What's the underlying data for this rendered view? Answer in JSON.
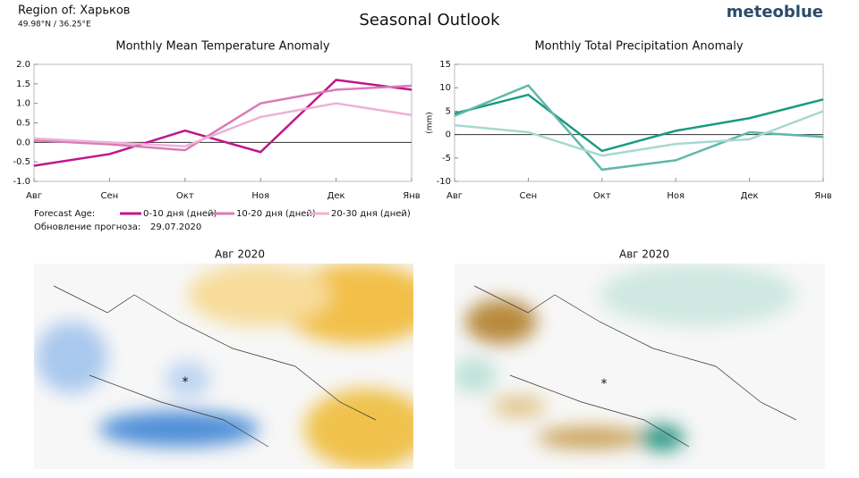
{
  "header": {
    "region": "Region of: Харьков",
    "coords": "49.98°N / 36.25°E",
    "title": "Seasonal Outlook",
    "brand": "meteoblue"
  },
  "chart_data": [
    {
      "type": "line",
      "title": "Monthly Mean Temperature Anomaly",
      "categories": [
        "Авг",
        "Сен",
        "Окт",
        "Ноя",
        "Дек",
        "Янв"
      ],
      "ylim": [
        -1.0,
        2.0
      ],
      "yticks": [
        {
          "value": -1.0,
          "label": "-1.0"
        },
        -0.5,
        {
          "value": 0.0,
          "label": "0.0"
        },
        0.5,
        {
          "value": 1.0,
          "label": "1.0"
        },
        1.5,
        {
          "value": 2.0,
          "label": "2.0"
        }
      ],
      "series": [
        {
          "name": "0-10 дня (дней)",
          "color": "#c0168a",
          "values": [
            -0.6,
            -0.3,
            0.3,
            -0.25,
            1.6,
            1.35
          ]
        },
        {
          "name": "10-20 дня (дней)",
          "color": "#d97bb6",
          "values": [
            0.05,
            -0.05,
            -0.2,
            1.0,
            1.35,
            1.45
          ]
        },
        {
          "name": "20-30 дня (дней)",
          "color": "#ecb3d6",
          "values": [
            0.1,
            0.0,
            -0.1,
            0.65,
            1.0,
            0.7
          ]
        }
      ]
    },
    {
      "type": "line",
      "title": "Monthly Total Precipitation Anomaly",
      "y_label": "(mm)",
      "categories": [
        "Авг",
        "Сен",
        "Окт",
        "Ноя",
        "Дек",
        "Янв"
      ],
      "ylim": [
        -10,
        15
      ],
      "yticks": [
        -10,
        -5,
        0,
        5,
        10,
        15
      ],
      "series": [
        {
          "color": "#1a9a80",
          "values": [
            4.5,
            8.5,
            -3.5,
            0.8,
            3.5,
            7.5
          ]
        },
        {
          "color": "#5fb8a8",
          "values": [
            4,
            10.5,
            -7.5,
            -5.5,
            0.5,
            -0.5
          ]
        },
        {
          "color": "#a8d8d0",
          "values": [
            2,
            0.5,
            -4.5,
            -2,
            -1,
            5
          ]
        }
      ]
    }
  ],
  "info": {
    "forecast_age": "Forecast Age:",
    "update_label": "Обновление прогноза:",
    "update_date": "29.07.2020"
  },
  "maps": [
    {
      "title": "Авг 2020"
    },
    {
      "title": "Авг 2020"
    }
  ]
}
